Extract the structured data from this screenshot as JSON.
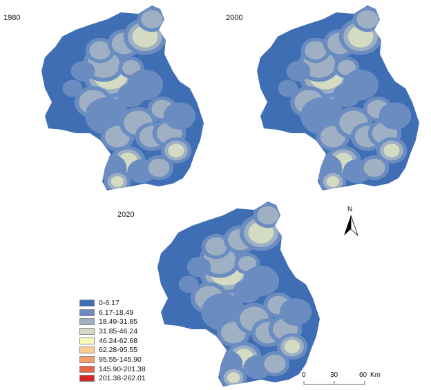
{
  "panels": [
    {
      "year": "1980"
    },
    {
      "year": "2000"
    },
    {
      "year": "2020"
    }
  ],
  "legend": [
    {
      "label": "0-6.17",
      "color": "#3f6eb5"
    },
    {
      "label": "6.17-18.49",
      "color": "#6a8cc0"
    },
    {
      "label": "18.49-31.85",
      "color": "#9fb0c4"
    },
    {
      "label": "31.85-46.24",
      "color": "#d3dcc3"
    },
    {
      "label": "46.24-62.68",
      "color": "#fdfbb8"
    },
    {
      "label": "62.28-95.55",
      "color": "#fbcf92"
    },
    {
      "label": "95.55-145.90",
      "color": "#f5a06a"
    },
    {
      "label": "145.90-201.38",
      "color": "#e8664a"
    },
    {
      "label": "201.38-262.01",
      "color": "#d7262b"
    }
  ],
  "north_arrow": {
    "label": "N"
  },
  "scale_bar": {
    "ticks": [
      "0",
      "30",
      "60"
    ],
    "unit": "Km"
  }
}
